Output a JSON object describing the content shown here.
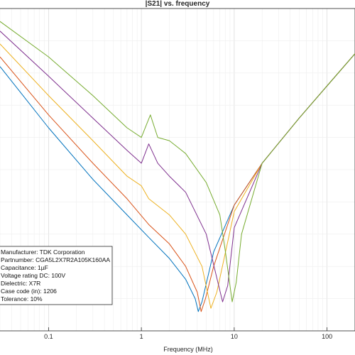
{
  "chart_data": {
    "type": "line",
    "title": "|S21| vs. frequency",
    "xlabel": "Frequency (MHz)",
    "ylabel": "",
    "x_scale": "log",
    "xlim": [
      0.03,
      200
    ],
    "ylim": [
      0,
      1
    ],
    "grid": true,
    "xticks": [
      {
        "value": 0.1,
        "label": "0.1"
      },
      {
        "value": 1,
        "label": "1"
      },
      {
        "value": 10,
        "label": "10"
      },
      {
        "value": 100,
        "label": "100"
      }
    ],
    "legend": {
      "placement": "bottom-left",
      "entries": [
        "Manufacturer: TDK Corporation",
        "Partnumber: CGA5L2X7R2A105K160AA",
        "Capacitance: 1µF",
        "Voltage rating DC: 100V",
        "Dielectric: X7R",
        "Case code (in): 1206",
        "Tolerance: 10%"
      ]
    },
    "series": [
      {
        "color": "#0072BD",
        "points": [
          [
            0.03,
            0.82
          ],
          [
            0.1,
            0.63
          ],
          [
            0.3,
            0.47
          ],
          [
            0.7,
            0.36
          ],
          [
            1.2,
            0.29
          ],
          [
            2,
            0.225
          ],
          [
            3,
            0.16
          ],
          [
            3.8,
            0.1
          ],
          [
            4.1,
            0.06
          ],
          [
            4.5,
            0.09
          ],
          [
            6,
            0.245
          ],
          [
            10,
            0.39
          ],
          [
            20,
            0.52
          ],
          [
            50,
            0.66
          ],
          [
            100,
            0.76
          ],
          [
            200,
            0.86
          ]
        ]
      },
      {
        "color": "#D95319",
        "points": [
          [
            0.03,
            0.85
          ],
          [
            0.1,
            0.67
          ],
          [
            0.3,
            0.52
          ],
          [
            0.7,
            0.41
          ],
          [
            1.2,
            0.33
          ],
          [
            2,
            0.27
          ],
          [
            3,
            0.2
          ],
          [
            4,
            0.12
          ],
          [
            4.4,
            0.06
          ],
          [
            4.9,
            0.1
          ],
          [
            6,
            0.2
          ],
          [
            10,
            0.39
          ],
          [
            20,
            0.52
          ],
          [
            50,
            0.66
          ],
          [
            100,
            0.76
          ],
          [
            200,
            0.86
          ]
        ]
      },
      {
        "color": "#EDB120",
        "points": [
          [
            0.03,
            0.89
          ],
          [
            0.1,
            0.73
          ],
          [
            0.3,
            0.59
          ],
          [
            0.7,
            0.48
          ],
          [
            1.0,
            0.45
          ],
          [
            1.2,
            0.41
          ],
          [
            2,
            0.36
          ],
          [
            3,
            0.3
          ],
          [
            4.5,
            0.2
          ],
          [
            5.6,
            0.07
          ],
          [
            6.5,
            0.12
          ],
          [
            10,
            0.37
          ],
          [
            20,
            0.52
          ],
          [
            50,
            0.66
          ],
          [
            100,
            0.76
          ],
          [
            200,
            0.86
          ]
        ]
      },
      {
        "color": "#7E2F8E",
        "points": [
          [
            0.03,
            0.93
          ],
          [
            0.1,
            0.79
          ],
          [
            0.3,
            0.66
          ],
          [
            0.7,
            0.56
          ],
          [
            1.0,
            0.52
          ],
          [
            1.2,
            0.58
          ],
          [
            1.5,
            0.52
          ],
          [
            2,
            0.48
          ],
          [
            3,
            0.43
          ],
          [
            5,
            0.3
          ],
          [
            7.5,
            0.09
          ],
          [
            8.5,
            0.14
          ],
          [
            10,
            0.32
          ],
          [
            20,
            0.52
          ],
          [
            50,
            0.66
          ],
          [
            100,
            0.76
          ],
          [
            200,
            0.86
          ]
        ]
      },
      {
        "color": "#77AC30",
        "points": [
          [
            0.03,
            0.96
          ],
          [
            0.1,
            0.85
          ],
          [
            0.3,
            0.73
          ],
          [
            0.7,
            0.63
          ],
          [
            1.0,
            0.6
          ],
          [
            1.25,
            0.67
          ],
          [
            1.5,
            0.6
          ],
          [
            2,
            0.59
          ],
          [
            3,
            0.55
          ],
          [
            5,
            0.46
          ],
          [
            7,
            0.36
          ],
          [
            8,
            0.25
          ],
          [
            9.5,
            0.09
          ],
          [
            10.5,
            0.15
          ],
          [
            12,
            0.3
          ],
          [
            20,
            0.52
          ],
          [
            50,
            0.66
          ],
          [
            100,
            0.76
          ],
          [
            200,
            0.86
          ]
        ]
      }
    ]
  }
}
